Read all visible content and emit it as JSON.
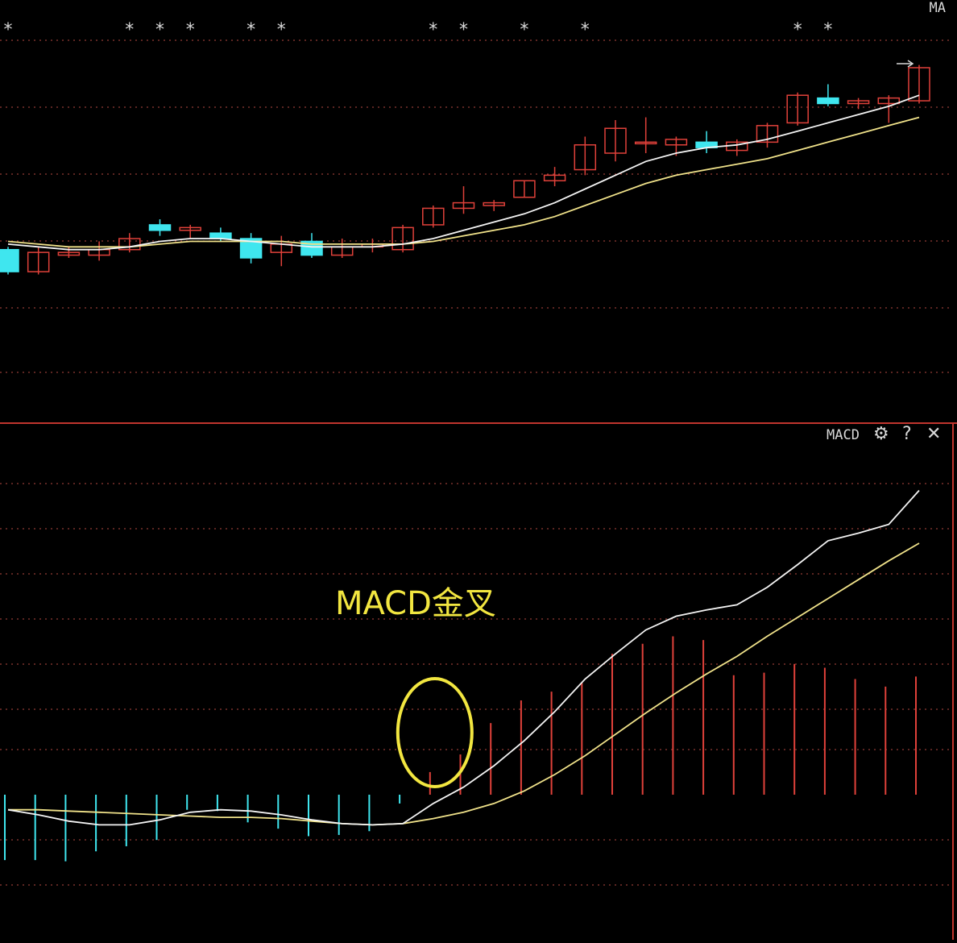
{
  "colors": {
    "background": "#000000",
    "up": "#e0413a",
    "down": "#3fe6ef",
    "ma_fast": "#f4f4f4",
    "ma_slow": "#f0e28a",
    "grid": "#b84a42",
    "divider": "#c0352e",
    "annotation": "#f2e640"
  },
  "icons": {
    "settings": "gear-icon",
    "help": "question-icon",
    "close": "close-icon"
  },
  "chart_data": [
    {
      "type": "candlestick",
      "title": "MA",
      "grid": "dotted horizontal",
      "ylim": [
        0,
        100
      ],
      "star_markers_at_index": [
        0,
        4,
        5,
        6,
        8,
        9,
        14,
        15,
        17,
        19,
        26,
        27
      ],
      "star_label": "*",
      "candles": [
        {
          "o": 34,
          "c": 26,
          "h": 35,
          "l": 25
        },
        {
          "o": 26,
          "c": 33,
          "h": 35,
          "l": 25
        },
        {
          "o": 32,
          "c": 33,
          "h": 35,
          "l": 31
        },
        {
          "o": 32,
          "c": 34,
          "h": 37,
          "l": 30
        },
        {
          "o": 34,
          "c": 38,
          "h": 40,
          "l": 33
        },
        {
          "o": 43,
          "c": 41,
          "h": 45,
          "l": 39
        },
        {
          "o": 41,
          "c": 42,
          "h": 43,
          "l": 38
        },
        {
          "o": 40,
          "c": 38,
          "h": 42,
          "l": 37
        },
        {
          "o": 38,
          "c": 31,
          "h": 40,
          "l": 29
        },
        {
          "o": 33,
          "c": 36,
          "h": 39,
          "l": 28
        },
        {
          "o": 37,
          "c": 32,
          "h": 40,
          "l": 31
        },
        {
          "o": 32,
          "c": 35,
          "h": 38,
          "l": 31
        },
        {
          "o": 35,
          "c": 36,
          "h": 38,
          "l": 33
        },
        {
          "o": 34,
          "c": 42,
          "h": 43,
          "l": 33
        },
        {
          "o": 43,
          "c": 49,
          "h": 50,
          "l": 42
        },
        {
          "o": 49,
          "c": 51,
          "h": 57,
          "l": 47
        },
        {
          "o": 50,
          "c": 51,
          "h": 52,
          "l": 48
        },
        {
          "o": 53,
          "c": 59,
          "h": 59,
          "l": 53
        },
        {
          "o": 59,
          "c": 61,
          "h": 64,
          "l": 57
        },
        {
          "o": 63,
          "c": 72,
          "h": 75,
          "l": 61
        },
        {
          "o": 69,
          "c": 78,
          "h": 81,
          "l": 66
        },
        {
          "o": 73,
          "c": 73,
          "h": 82,
          "l": 69
        },
        {
          "o": 72,
          "c": 74,
          "h": 75,
          "l": 68
        },
        {
          "o": 73,
          "c": 71,
          "h": 77,
          "l": 69
        },
        {
          "o": 70,
          "c": 73,
          "h": 74,
          "l": 68
        },
        {
          "o": 73,
          "c": 79,
          "h": 80,
          "l": 71
        },
        {
          "o": 80,
          "c": 90,
          "h": 91,
          "l": 79
        },
        {
          "o": 89,
          "c": 87,
          "h": 94,
          "l": 86
        },
        {
          "o": 87,
          "c": 88,
          "h": 89,
          "l": 85
        },
        {
          "o": 87,
          "c": 89,
          "h": 90,
          "l": 80
        },
        {
          "o": 88,
          "c": 100,
          "h": 101,
          "l": 87
        }
      ],
      "ma_fast": [
        36,
        35,
        34,
        34,
        35,
        37,
        38,
        38,
        37,
        36,
        35,
        35,
        35,
        36,
        38,
        41,
        44,
        47,
        51,
        56,
        61,
        66,
        69,
        71,
        72,
        74,
        77,
        80,
        83,
        86,
        90
      ],
      "ma_slow": [
        37,
        36,
        35,
        35,
        35,
        36,
        37,
        37,
        37,
        37,
        36,
        36,
        36,
        36,
        37,
        39,
        41,
        43,
        46,
        50,
        54,
        58,
        61,
        63,
        65,
        67,
        70,
        73,
        76,
        79,
        82
      ]
    },
    {
      "type": "macd",
      "title": "MACD",
      "annotation": "MACD金叉",
      "cross_index": 14,
      "grid": "dotted horizontal",
      "ylim": [
        -100,
        100
      ],
      "histogram": [
        -52,
        -52,
        -53,
        -45,
        -41,
        -36,
        -12,
        -13,
        -22,
        -27,
        -33,
        -32,
        -29,
        -7,
        18,
        32,
        57,
        75,
        82,
        89,
        112,
        120,
        126,
        123,
        95,
        97,
        104,
        101,
        92,
        86,
        94
      ],
      "dif": [
        -12,
        -16,
        -21,
        -24,
        -24,
        -20,
        -14,
        -12,
        -13,
        -16,
        -20,
        -23,
        -24,
        -23,
        -7,
        6,
        23,
        43,
        66,
        92,
        112,
        131,
        142,
        147,
        151,
        165,
        183,
        202,
        208,
        215,
        242
      ],
      "dea": [
        -12,
        -12,
        -13,
        -14,
        -15,
        -16,
        -17,
        -18,
        -18,
        -19,
        -21,
        -23,
        -24,
        -23,
        -19,
        -14,
        -7,
        3,
        16,
        31,
        48,
        65,
        81,
        96,
        110,
        126,
        141,
        156,
        171,
        186,
        200
      ]
    }
  ]
}
